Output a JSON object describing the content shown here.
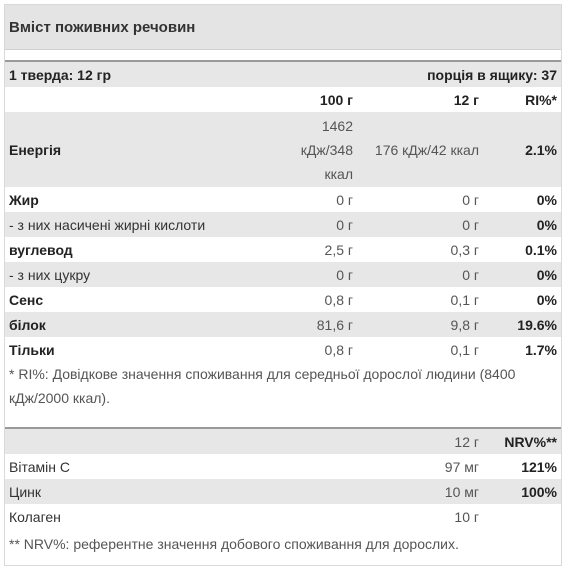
{
  "title": "Вміст поживних речовин",
  "serving": {
    "label": "1 тверда: 12 гр",
    "per_box": "порція в ящику: 37"
  },
  "nutrition": {
    "headers": [
      "100 г",
      "12 г",
      "RI%*"
    ],
    "energy": {
      "label": "Енергія",
      "per100_line1": "1462",
      "per100_line2": "кДж/348",
      "per100_line3": "ккал",
      "per12": "176 кДж/42 ккал",
      "ri": "2.1%"
    },
    "rows": [
      {
        "label": "Жир",
        "per100": "0 г",
        "per12": "0 г",
        "ri": "0%",
        "bold": true
      },
      {
        "label": "- з них насичені жирні кислоти",
        "per100": "0 г",
        "per12": "0 г",
        "ri": "0%",
        "bold": false
      },
      {
        "label": "вуглевод",
        "per100": "2,5 г",
        "per12": "0,3 г",
        "ri": "0.1%",
        "bold": true
      },
      {
        "label": "- з них цукру",
        "per100": "0 г",
        "per12": "0 г",
        "ri": "0%",
        "bold": false
      },
      {
        "label": "Сенс",
        "per100": "0,8 г",
        "per12": "0,1 г",
        "ri": "0%",
        "bold": true
      },
      {
        "label": "білок",
        "per100": "81,6 г",
        "per12": "9,8 г",
        "ri": "19.6%",
        "bold": true
      },
      {
        "label": "Тільки",
        "per100": "0,8 г",
        "per12": "0,1 г",
        "ri": "1.7%",
        "bold": true
      }
    ],
    "footnote": "* RI%: Довідкове значення споживання для середньої дорослої людини (8400 кДж/2000 ккал)."
  },
  "vitamins": {
    "headers": [
      "12 г",
      "NRV%**"
    ],
    "rows": [
      {
        "label": "Вітамін С",
        "amount": "97 мг",
        "nrv": "121%"
      },
      {
        "label": "Цинк",
        "amount": "10 мг",
        "nrv": "100%"
      },
      {
        "label": "Колаген",
        "amount": "10 г",
        "nrv": ""
      }
    ],
    "footnote": "** NRV%: референтне значення добового споживання для дорослих."
  }
}
